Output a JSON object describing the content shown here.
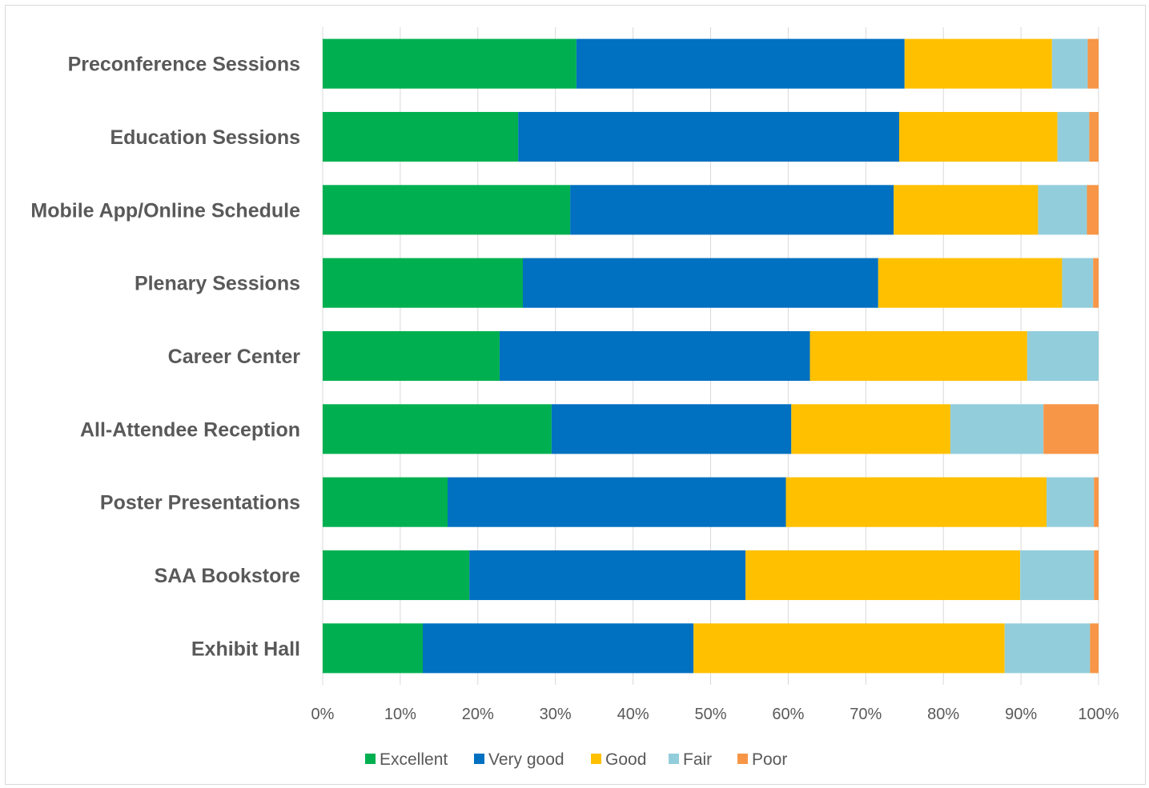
{
  "chart_data": {
    "type": "bar",
    "orientation": "horizontal",
    "stacked": "percent",
    "title": "",
    "xlabel": "",
    "ylabel": "",
    "xlim": [
      0,
      100
    ],
    "grid": true,
    "legend_position": "bottom",
    "categories": [
      "Preconference Sessions",
      "Education Sessions",
      "Mobile App/Online Schedule",
      "Plenary Sessions",
      "Career Center",
      "All-Attendee Reception",
      "Poster Presentations",
      "SAA Bookstore",
      "Exhibit Hall"
    ],
    "x_ticks": [
      "0%",
      "10%",
      "20%",
      "30%",
      "40%",
      "50%",
      "60%",
      "70%",
      "80%",
      "90%",
      "100%"
    ],
    "series": [
      {
        "name": "Excellent",
        "color": "#00b050",
        "values": [
          32.7,
          25.2,
          31.9,
          25.8,
          22.8,
          29.5,
          16.1,
          18.9,
          12.9
        ]
      },
      {
        "name": "Very good",
        "color": "#0070c0",
        "values": [
          42.3,
          49.1,
          41.7,
          45.8,
          40.0,
          30.9,
          43.6,
          35.6,
          34.9
        ]
      },
      {
        "name": "Good",
        "color": "#ffc000",
        "values": [
          19.0,
          20.4,
          18.6,
          23.7,
          28.0,
          20.5,
          33.6,
          35.4,
          40.1
        ]
      },
      {
        "name": "Fair",
        "color": "#92cddc",
        "values": [
          4.6,
          4.1,
          6.3,
          4.0,
          9.2,
          12.0,
          6.1,
          9.5,
          11.0
        ]
      },
      {
        "name": "Poor",
        "color": "#f79646",
        "values": [
          1.4,
          1.2,
          1.5,
          0.7,
          0.0,
          7.1,
          0.6,
          0.6,
          1.1
        ]
      }
    ]
  }
}
